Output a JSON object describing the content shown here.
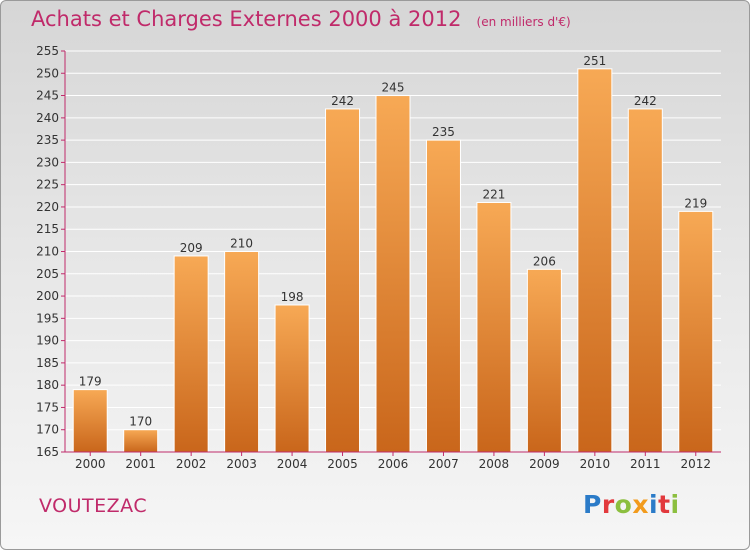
{
  "title": "Achats et Charges Externes 2000 à 2012",
  "subtitle": "(en milliers d'€)",
  "commune": "VOUTEZAC",
  "logo": {
    "text": "Proxiti",
    "letters": [
      {
        "char": "P",
        "color": "#2b7bc8"
      },
      {
        "char": "r",
        "color": "#e2393d"
      },
      {
        "char": "o",
        "color": "#8cbf3f"
      },
      {
        "char": "x",
        "color": "#f29b1d"
      },
      {
        "char": "i",
        "color": "#2b7bc8"
      },
      {
        "char": "t",
        "color": "#e2393d"
      },
      {
        "char": "i",
        "color": "#8cbf3f"
      }
    ]
  },
  "colors": {
    "accent": "#c02a6a",
    "bar_top": "#f7a955",
    "bar_bottom": "#c9661b",
    "axis": "#c02a6a",
    "grid": "#ffffff"
  },
  "chart_data": {
    "type": "bar",
    "categories": [
      "2000",
      "2001",
      "2002",
      "2003",
      "2004",
      "2005",
      "2006",
      "2007",
      "2008",
      "2009",
      "2010",
      "2011",
      "2012"
    ],
    "values": [
      179,
      170,
      209,
      210,
      198,
      242,
      245,
      235,
      221,
      206,
      251,
      242,
      219
    ],
    "title": "Achats et Charges Externes 2000 à 2012",
    "xlabel": "",
    "ylabel": "",
    "ylim": [
      165,
      255
    ],
    "yticks": [
      165,
      170,
      175,
      180,
      185,
      190,
      195,
      200,
      205,
      210,
      215,
      220,
      225,
      230,
      235,
      240,
      245,
      250,
      255
    ],
    "grid": true,
    "data_labels": true
  }
}
